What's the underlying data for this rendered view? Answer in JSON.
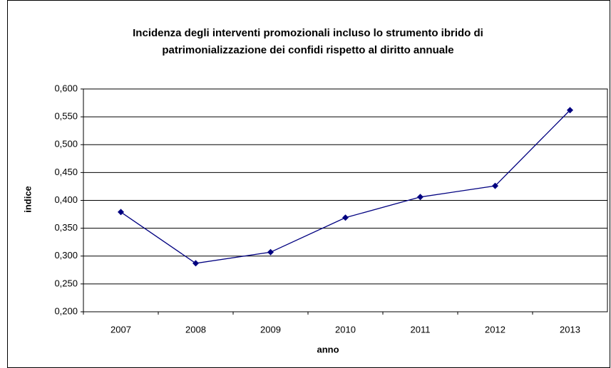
{
  "chart_data": {
    "type": "line",
    "title": [
      "Incidenza degli interventi promozionali incluso lo strumento ibrido di",
      "patrimonializzazione dei confidi rispetto al diritto annuale"
    ],
    "x_label": "anno",
    "y_label": "indice",
    "categories": [
      "2007",
      "2008",
      "2009",
      "2010",
      "2011",
      "2012",
      "2013"
    ],
    "series": [
      {
        "color": "#000080",
        "values": [
          0.379,
          0.287,
          0.307,
          0.369,
          0.406,
          0.426,
          0.562
        ]
      }
    ],
    "ylim": [
      0.2,
      0.6
    ],
    "yticks": [
      {
        "value": 0.2,
        "label": "0,200"
      },
      {
        "value": 0.25,
        "label": "0,250"
      },
      {
        "value": 0.3,
        "label": "0,300"
      },
      {
        "value": 0.35,
        "label": "0,350"
      },
      {
        "value": 0.4,
        "label": "0,400"
      },
      {
        "value": 0.45,
        "label": "0,450"
      },
      {
        "value": 0.5,
        "label": "0,500"
      },
      {
        "value": 0.55,
        "label": "0,550"
      },
      {
        "value": 0.6,
        "label": "0,600"
      }
    ],
    "grid": true
  }
}
